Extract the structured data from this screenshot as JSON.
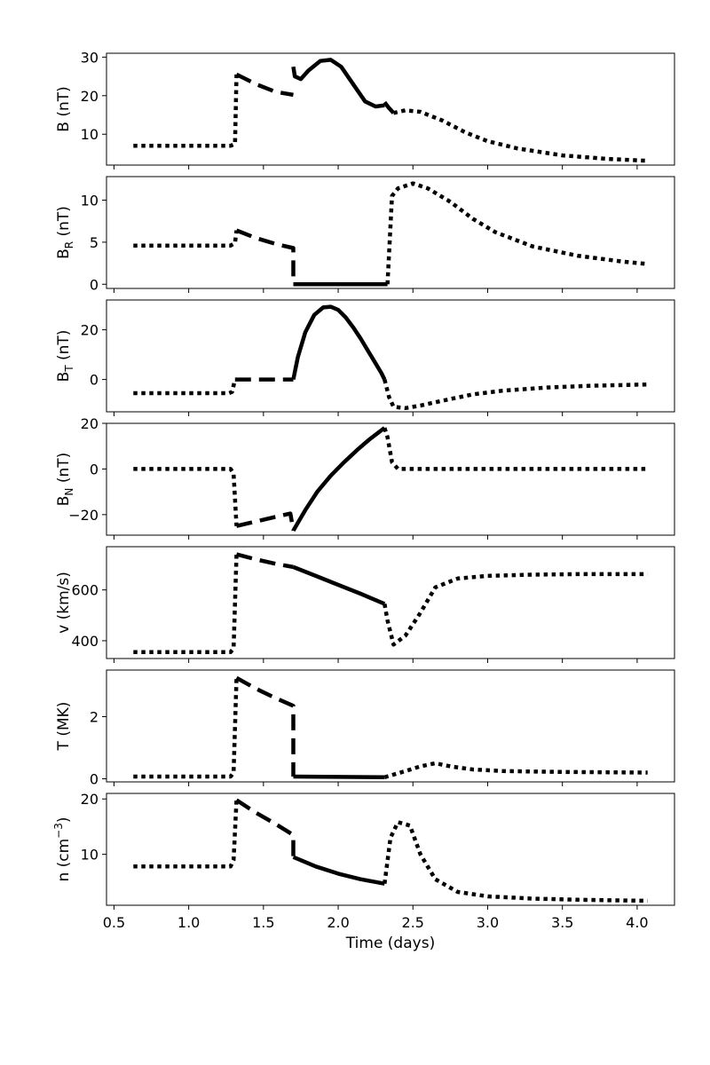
{
  "chart_data": {
    "type": "line",
    "xlabel": "Time (days)",
    "xlim": [
      0.45,
      4.25
    ],
    "xticks": [
      0.5,
      1.0,
      1.5,
      2.0,
      2.5,
      3.0,
      3.5,
      4.0
    ],
    "xtick_labels": [
      "0.5",
      "1.0",
      "1.5",
      "2.0",
      "2.5",
      "3.0",
      "3.5",
      "4.0"
    ],
    "panels": [
      {
        "id": "B",
        "ylabel": "B (nT)",
        "ylabel_base": "B",
        "ylabel_sub": "",
        "ylabel_sup": "",
        "ylabel_unit": " (nT)",
        "ylim": [
          2,
          31
        ],
        "yticks": [
          10,
          20,
          30
        ],
        "ytick_labels": [
          "10",
          "20",
          "30"
        ],
        "segments": [
          {
            "style": "dotted",
            "x": [
              0.63,
              1.28,
              1.31,
              1.32
            ],
            "y": [
              7,
              7,
              7.5,
              25.5
            ]
          },
          {
            "style": "dashed",
            "x": [
              1.32,
              1.45,
              1.58,
              1.7
            ],
            "y": [
              25.5,
              23,
              21,
              20.2
            ]
          },
          {
            "style": "solid",
            "x": [
              1.7,
              1.71,
              1.75,
              1.8,
              1.88,
              1.95,
              2.02,
              2.1,
              2.18,
              2.25,
              2.31
            ],
            "y": [
              27.5,
              25,
              24.3,
              26.5,
              29,
              29.3,
              27.5,
              23,
              18.5,
              17.2,
              17.5
            ]
          },
          {
            "style": "dashed",
            "x": [
              2.31,
              2.34,
              2.37
            ],
            "y": [
              18.3,
              16.8,
              15.5
            ]
          },
          {
            "style": "dotted",
            "x": [
              2.37,
              2.45,
              2.55,
              2.7,
              2.85,
              3.0,
              3.2,
              3.5,
              3.8,
              4.07
            ],
            "y": [
              15.5,
              16.2,
              15.8,
              13.5,
              10.5,
              8.2,
              6.3,
              4.5,
              3.6,
              3.1
            ]
          }
        ]
      },
      {
        "id": "BR",
        "ylabel": "BR (nT)",
        "ylabel_base": "B",
        "ylabel_sub": "R",
        "ylabel_sup": "",
        "ylabel_unit": " (nT)",
        "ylim": [
          -0.5,
          12.8
        ],
        "yticks": [
          0,
          5,
          10
        ],
        "ytick_labels": [
          "0",
          "5",
          "10"
        ],
        "segments": [
          {
            "style": "dotted",
            "x": [
              0.63,
              1.28,
              1.31,
              1.32
            ],
            "y": [
              4.6,
              4.6,
              4.9,
              6.4
            ]
          },
          {
            "style": "dashed",
            "x": [
              1.32,
              1.45,
              1.58,
              1.7,
              1.7
            ],
            "y": [
              6.4,
              5.5,
              4.8,
              4.3,
              0
            ]
          },
          {
            "style": "solid",
            "x": [
              1.7,
              2.33
            ],
            "y": [
              0,
              0
            ]
          },
          {
            "style": "dotted",
            "x": [
              2.33,
              2.36,
              2.4,
              2.5,
              2.6,
              2.75,
              2.9,
              3.05,
              3.3,
              3.6,
              3.9,
              4.07
            ],
            "y": [
              0,
              10.5,
              11.4,
              12.0,
              11.4,
              9.8,
              7.8,
              6.2,
              4.5,
              3.4,
              2.7,
              2.4
            ]
          }
        ]
      },
      {
        "id": "BT",
        "ylabel": "BT (nT)",
        "ylabel_base": "B",
        "ylabel_sub": "T",
        "ylabel_sup": "",
        "ylabel_unit": " (nT)",
        "ylim": [
          -13,
          32
        ],
        "yticks": [
          0,
          20
        ],
        "ytick_labels": [
          "0",
          "20"
        ],
        "segments": [
          {
            "style": "dotted",
            "x": [
              0.63,
              1.27,
              1.29,
              1.31
            ],
            "y": [
              -5.5,
              -5.5,
              -5,
              0
            ]
          },
          {
            "style": "dashed",
            "x": [
              1.31,
              1.7
            ],
            "y": [
              0,
              0
            ]
          },
          {
            "style": "solid",
            "x": [
              1.7,
              1.73,
              1.78,
              1.84,
              1.9,
              1.95,
              2.0,
              2.05,
              2.1,
              2.15,
              2.2,
              2.25,
              2.29,
              2.31
            ],
            "y": [
              0,
              9,
              19,
              26,
              29,
              29.3,
              28,
              25,
              21,
              16.5,
              11.5,
              6.5,
              2.5,
              0
            ]
          },
          {
            "style": "dotted",
            "x": [
              2.31,
              2.34,
              2.37,
              2.45,
              2.55,
              2.7,
              2.9,
              3.1,
              3.4,
              3.7,
              4.07
            ],
            "y": [
              0,
              -7,
              -11,
              -11.5,
              -10.5,
              -8.5,
              -6,
              -4.5,
              -3.2,
              -2.5,
              -2
            ]
          }
        ]
      },
      {
        "id": "BN",
        "ylabel": "BN (nT)",
        "ylabel_base": "B",
        "ylabel_sub": "N",
        "ylabel_sup": "",
        "ylabel_unit": " (nT)",
        "ylim": [
          -29,
          20
        ],
        "yticks": [
          -20,
          0,
          20
        ],
        "ytick_labels": [
          "−20",
          "0",
          "20"
        ],
        "segments": [
          {
            "style": "dotted",
            "x": [
              0.63,
              1.28,
              1.3,
              1.32
            ],
            "y": [
              0,
              0,
              -2,
              -25
            ]
          },
          {
            "style": "dashed",
            "x": [
              1.32,
              1.45,
              1.58,
              1.68,
              1.7
            ],
            "y": [
              -25,
              -23,
              -21,
              -19.5,
              -27
            ]
          },
          {
            "style": "solid",
            "x": [
              1.7,
              1.78,
              1.86,
              1.95,
              2.04,
              2.13,
              2.21,
              2.27,
              2.31
            ],
            "y": [
              -27,
              -18,
              -10,
              -3,
              3,
              8.5,
              13,
              16,
              18
            ]
          },
          {
            "style": "dotted",
            "x": [
              2.31,
              2.33,
              2.36,
              2.4,
              3.0,
              4.07
            ],
            "y": [
              18,
              14,
              3,
              0,
              0,
              0
            ]
          }
        ]
      },
      {
        "id": "v",
        "ylabel": "v (km/s)",
        "ylabel_base": "v (km/s)",
        "ylabel_sub": "",
        "ylabel_sup": "",
        "ylabel_unit": "",
        "ylim": [
          330,
          770
        ],
        "yticks": [
          400,
          600
        ],
        "ytick_labels": [
          "400",
          "600"
        ],
        "segments": [
          {
            "style": "dotted",
            "x": [
              0.63,
              1.28,
              1.3,
              1.32
            ],
            "y": [
              355,
              355,
              370,
              740
            ]
          },
          {
            "style": "dashed",
            "x": [
              1.32,
              1.45,
              1.58,
              1.7
            ],
            "y": [
              740,
              720,
              703,
              690
            ]
          },
          {
            "style": "solid",
            "x": [
              1.7,
              1.85,
              2.0,
              2.15,
              2.31
            ],
            "y": [
              690,
              655,
              620,
              585,
              545
            ]
          },
          {
            "style": "dotted",
            "x": [
              2.31,
              2.33,
              2.37,
              2.45,
              2.55,
              2.65,
              2.8,
              3.0,
              3.3,
              3.6,
              4.07
            ],
            "y": [
              545,
              480,
              385,
              420,
              510,
              610,
              645,
              655,
              660,
              662,
              662
            ]
          }
        ]
      },
      {
        "id": "T",
        "ylabel": "T (MK)",
        "ylabel_base": "T (MK)",
        "ylabel_sub": "",
        "ylabel_sup": "",
        "ylabel_unit": "",
        "ylim": [
          -0.1,
          3.5
        ],
        "yticks": [
          0,
          2
        ],
        "ytick_labels": [
          "0",
          "2"
        ],
        "segments": [
          {
            "style": "dotted",
            "x": [
              0.63,
              1.28,
              1.3,
              1.32
            ],
            "y": [
              0.07,
              0.07,
              0.2,
              3.25
            ]
          },
          {
            "style": "dashed",
            "x": [
              1.32,
              1.45,
              1.58,
              1.7,
              1.7
            ],
            "y": [
              3.25,
              2.9,
              2.6,
              2.35,
              0.07
            ]
          },
          {
            "style": "solid",
            "x": [
              1.7,
              2.31
            ],
            "y": [
              0.07,
              0.05
            ]
          },
          {
            "style": "dotted",
            "x": [
              2.31,
              2.45,
              2.55,
              2.65,
              2.75,
              2.9,
              3.1,
              3.5,
              4.07
            ],
            "y": [
              0.05,
              0.25,
              0.4,
              0.5,
              0.4,
              0.3,
              0.25,
              0.22,
              0.2
            ]
          }
        ]
      },
      {
        "id": "n",
        "ylabel": "n (cm−3)",
        "ylabel_base": "n (cm",
        "ylabel_sub": "",
        "ylabel_sup": "−3",
        "ylabel_unit": ")",
        "ylim": [
          0.8,
          21
        ],
        "yticks": [
          10,
          20
        ],
        "ytick_labels": [
          "10",
          "20"
        ],
        "segments": [
          {
            "style": "dotted",
            "x": [
              0.63,
              1.28,
              1.3,
              1.32
            ],
            "y": [
              7.8,
              7.8,
              9,
              19.8
            ]
          },
          {
            "style": "dashed",
            "x": [
              1.32,
              1.45,
              1.58,
              1.7,
              1.7
            ],
            "y": [
              19.8,
              17.5,
              15.5,
              13.5,
              9.5
            ]
          },
          {
            "style": "solid",
            "x": [
              1.7,
              1.85,
              2.0,
              2.15,
              2.31
            ],
            "y": [
              9.5,
              7.8,
              6.5,
              5.5,
              4.7
            ]
          },
          {
            "style": "dotted",
            "x": [
              2.31,
              2.35,
              2.4,
              2.48,
              2.55,
              2.65,
              2.8,
              3.0,
              3.3,
              3.6,
              4.07
            ],
            "y": [
              4.7,
              13,
              15.8,
              15.2,
              10,
              5.5,
              3.2,
              2.4,
              2.0,
              1.8,
              1.6
            ]
          }
        ]
      }
    ]
  }
}
